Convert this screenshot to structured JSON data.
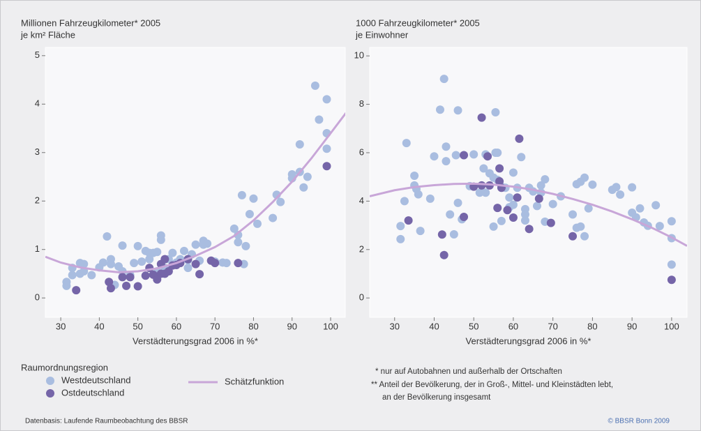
{
  "legend_title": "Raumordnungsregion",
  "footnotes": [
    "* nur auf Autobahnen und außerhalb der Ortschaften",
    "** Anteil der Bevölkerung, der in Groß-, Mittel- und Kleinstädten lebt,",
    "an der Bevölkerung insgesamt"
  ],
  "source": "Datenbasis: Laufende Raumbeobachtung des BBSR",
  "copyright": "© BBSR Bonn 2009",
  "chart_data": [
    {
      "type": "scatter",
      "title": "Millionen Fahrzeugkilometer* 2005",
      "subtitle": "je km² Fläche",
      "x_label": "Verstädterungsgrad 2006 in %*",
      "xlim": [
        26,
        103.8
      ],
      "ylim": [
        -0.4,
        5.17
      ],
      "xticks": [
        30,
        40,
        50,
        60,
        70,
        80,
        90,
        100
      ],
      "yticks": [
        0,
        1,
        2,
        3,
        4,
        5
      ],
      "series": [
        {
          "name": "Westdeutschland",
          "color": "#a9bde0",
          "x": [
            31.5,
            31.5,
            33,
            33,
            35,
            35,
            36,
            36,
            38,
            40,
            41,
            42,
            43,
            43,
            44,
            45,
            46,
            46,
            48,
            49,
            50,
            51,
            52,
            53,
            53,
            54,
            55,
            55,
            56,
            56,
            57,
            58,
            59,
            60,
            61,
            62,
            63,
            63,
            64,
            65,
            66,
            67,
            67,
            68,
            70,
            72,
            73,
            75,
            76,
            76,
            77,
            78,
            77.5,
            79,
            80,
            81,
            85,
            86,
            87,
            90,
            90,
            92,
            92,
            93,
            94,
            96,
            97,
            99,
            99,
            99
          ],
          "values": [
            0.33,
            0.25,
            0.62,
            0.47,
            0.72,
            0.5,
            0.7,
            0.55,
            0.47,
            0.63,
            0.73,
            1.27,
            0.8,
            0.7,
            0.27,
            0.65,
            1.08,
            0.55,
            0.47,
            0.72,
            1.07,
            0.75,
            0.97,
            0.93,
            0.8,
            0.93,
            0.95,
            0.55,
            1.29,
            1.2,
            0.62,
            0.8,
            0.93,
            0.73,
            0.8,
            0.97,
            0.62,
            0.78,
            0.9,
            1.1,
            0.77,
            1.18,
            1.1,
            1.12,
            0.75,
            0.73,
            0.72,
            1.43,
            1.3,
            1.15,
            2.12,
            1.07,
            0.7,
            1.73,
            2.05,
            1.53,
            1.65,
            2.13,
            1.98,
            2.55,
            2.47,
            3.17,
            2.6,
            2.28,
            2.5,
            4.38,
            3.68,
            4.1,
            3.4,
            3.08
          ]
        },
        {
          "name": "Ostdeutschland",
          "color": "#7565a8",
          "x": [
            34,
            42.5,
            43,
            46,
            47,
            48,
            50,
            52,
            53,
            54,
            55,
            56,
            56,
            57,
            57,
            58,
            59,
            60,
            61,
            63,
            65,
            66,
            69,
            70,
            76,
            99
          ],
          "values": [
            0.16,
            0.33,
            0.2,
            0.43,
            0.25,
            0.43,
            0.24,
            0.46,
            0.62,
            0.48,
            0.38,
            0.5,
            0.7,
            0.8,
            0.5,
            0.55,
            0.67,
            0.68,
            0.72,
            0.8,
            0.7,
            0.49,
            0.77,
            0.72,
            0.72,
            2.72
          ]
        },
        {
          "name": "Schätzfunktion",
          "color": "#c8a6d8",
          "kind": "line",
          "x": [
            26,
            30,
            35,
            40,
            45,
            50,
            55,
            60,
            65,
            70,
            75,
            80,
            85,
            90,
            95,
            100,
            104
          ],
          "values": [
            0.85,
            0.73,
            0.63,
            0.57,
            0.53,
            0.55,
            0.61,
            0.72,
            0.87,
            1.05,
            1.28,
            1.6,
            1.98,
            2.4,
            2.88,
            3.4,
            3.82
          ]
        }
      ]
    },
    {
      "type": "scatter",
      "title": "1000 Fahrzeugkilometer* 2005",
      "subtitle": "je Einwohner",
      "x_label": "Verstädterungsgrad 2006 in %*",
      "xlim": [
        23.7,
        103.9
      ],
      "ylim": [
        -0.8,
        10.35
      ],
      "xticks": [
        30,
        40,
        50,
        60,
        70,
        80,
        90,
        100
      ],
      "yticks": [
        0,
        2,
        4,
        6,
        8,
        10
      ],
      "series": [
        {
          "color": "#a9bde0",
          "x": [
            31.5,
            31.5,
            32.5,
            33,
            35,
            35,
            35.5,
            36,
            36.5,
            39,
            40,
            41.5,
            42.5,
            43,
            43,
            44,
            45,
            45.5,
            46,
            46,
            47,
            49,
            50,
            51.5,
            52.5,
            53,
            53,
            54,
            55,
            55,
            55.5,
            55.5,
            56,
            56,
            57,
            57,
            58,
            59,
            59,
            60,
            60,
            61,
            62,
            63,
            63,
            63,
            64,
            65,
            66,
            67,
            67,
            68,
            68,
            70,
            72,
            75,
            76,
            76,
            77,
            77,
            78,
            78,
            79,
            80,
            85,
            86,
            87,
            90,
            90,
            91,
            92,
            93,
            94,
            96,
            97,
            100,
            100,
            100
          ],
          "values": [
            2.97,
            2.43,
            4.0,
            6.4,
            5.05,
            4.65,
            4.5,
            4.28,
            2.77,
            4.1,
            5.85,
            7.78,
            9.05,
            6.25,
            5.65,
            3.45,
            2.63,
            5.9,
            7.75,
            3.93,
            3.25,
            4.62,
            5.93,
            4.35,
            5.35,
            4.35,
            5.93,
            5.15,
            4.97,
            2.95,
            7.67,
            6.0,
            6.0,
            4.88,
            4.6,
            3.18,
            4.55,
            4.15,
            3.75,
            3.85,
            5.18,
            4.55,
            5.82,
            3.67,
            3.45,
            3.2,
            4.55,
            4.4,
            3.8,
            4.65,
            4.35,
            4.9,
            3.15,
            3.88,
            4.2,
            3.45,
            4.7,
            2.9,
            4.8,
            2.95,
            4.97,
            2.55,
            3.7,
            4.68,
            4.47,
            4.58,
            4.27,
            3.52,
            4.57,
            3.33,
            3.7,
            3.12,
            2.98,
            3.83,
            2.97,
            3.17,
            2.47,
            1.38
          ]
        },
        {
          "color": "#7565a8",
          "x": [
            33.5,
            42,
            42.5,
            47.5,
            47.5,
            50,
            52,
            52,
            53.5,
            54,
            56,
            56.5,
            56.5,
            57,
            58.5,
            60,
            61,
            61.5,
            64,
            66.5,
            69.5,
            75,
            100
          ],
          "values": [
            3.2,
            2.62,
            1.77,
            5.9,
            3.35,
            4.6,
            7.45,
            4.65,
            5.85,
            4.65,
            3.72,
            5.35,
            4.82,
            4.55,
            3.63,
            3.32,
            4.15,
            6.58,
            2.85,
            4.1,
            3.1,
            2.55,
            0.75
          ]
        },
        {
          "color": "#c8a6d8",
          "kind": "line",
          "x": [
            23.7,
            30,
            35,
            40,
            45,
            50,
            55,
            60,
            65,
            70,
            75,
            80,
            85,
            90,
            95,
            100,
            103.9
          ],
          "values": [
            4.2,
            4.45,
            4.58,
            4.66,
            4.71,
            4.72,
            4.68,
            4.6,
            4.47,
            4.3,
            4.09,
            3.85,
            3.57,
            3.25,
            2.9,
            2.5,
            2.15
          ]
        }
      ]
    }
  ]
}
